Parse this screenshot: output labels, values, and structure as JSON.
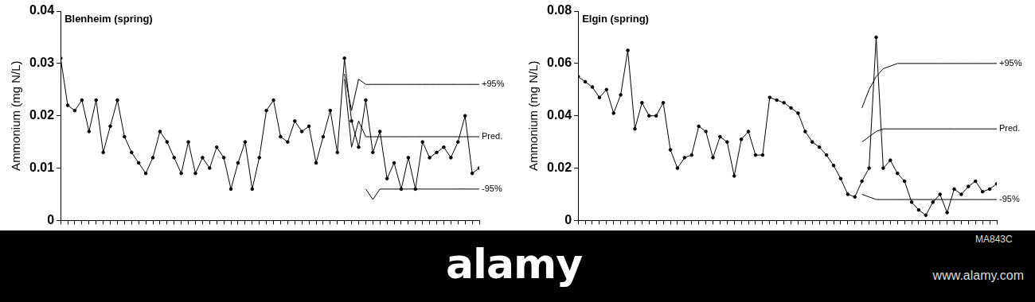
{
  "chart_data": [
    {
      "type": "line",
      "title": "Blenheim (spring)",
      "y_label": "Ammonium (mg N/L)",
      "categories": [
        null,
        null,
        null,
        null,
        null,
        null,
        null,
        null,
        null,
        null,
        null,
        null,
        null,
        null,
        null,
        null,
        null,
        null,
        null,
        null,
        null,
        null,
        null,
        null,
        null,
        null,
        null,
        null,
        null,
        null,
        null,
        null,
        null,
        null,
        null,
        null,
        null,
        null,
        null,
        null,
        null,
        null,
        null,
        null,
        null,
        null,
        null,
        null,
        null,
        null,
        null,
        null,
        null,
        null,
        null,
        null,
        null,
        null,
        null,
        null
      ],
      "series": [
        {
          "color": "#000000",
          "marker": "dot",
          "line_style": "solid",
          "values": [
            0.031,
            0.022,
            0.021,
            0.023,
            0.017,
            0.023,
            0.013,
            0.018,
            0.023,
            0.016,
            0.013,
            0.011,
            0.009,
            0.012,
            0.017,
            0.015,
            0.012,
            0.009,
            0.015,
            0.009,
            0.012,
            0.01,
            0.014,
            0.012,
            0.006,
            0.011,
            0.015,
            0.006,
            0.012,
            0.021,
            0.023,
            0.016,
            0.015,
            0.019,
            0.017,
            0.018,
            0.011,
            0.016,
            0.021,
            0.013,
            0.031,
            0.019,
            0.014,
            0.023,
            0.013,
            0.017,
            0.008,
            0.011,
            0.006,
            0.012,
            0.006,
            0.015,
            0.012,
            0.013,
            0.014,
            0.012,
            0.015,
            0.02,
            0.009,
            0.01
          ]
        },
        {
          "name": "+95%",
          "color": "#000000",
          "marker": "none",
          "line_style": "solid",
          "values": [
            null,
            null,
            null,
            null,
            null,
            null,
            null,
            null,
            null,
            null,
            null,
            null,
            null,
            null,
            null,
            null,
            null,
            null,
            null,
            null,
            null,
            null,
            null,
            null,
            null,
            null,
            null,
            null,
            null,
            null,
            null,
            null,
            null,
            null,
            null,
            null,
            null,
            null,
            null,
            null,
            0.028,
            0.021,
            0.027,
            0.026,
            0.026,
            0.026,
            0.026,
            0.026,
            0.026,
            0.026,
            0.026,
            0.026,
            0.026,
            0.026,
            0.026,
            0.026,
            0.026,
            0.026,
            0.026,
            0.026
          ]
        },
        {
          "name": "Pred.",
          "color": "#000000",
          "marker": "none",
          "line_style": "solid",
          "values": [
            null,
            null,
            null,
            null,
            null,
            null,
            null,
            null,
            null,
            null,
            null,
            null,
            null,
            null,
            null,
            null,
            null,
            null,
            null,
            null,
            null,
            null,
            null,
            null,
            null,
            null,
            null,
            null,
            null,
            null,
            null,
            null,
            null,
            null,
            null,
            null,
            null,
            null,
            null,
            null,
            0.027,
            0.014,
            0.019,
            0.016,
            0.016,
            0.016,
            0.016,
            0.016,
            0.016,
            0.016,
            0.016,
            0.016,
            0.016,
            0.016,
            0.016,
            0.016,
            0.016,
            0.016,
            0.016,
            0.016
          ]
        },
        {
          "name": "-95%",
          "color": "#000000",
          "marker": "none",
          "line_style": "solid",
          "values": [
            null,
            null,
            null,
            null,
            null,
            null,
            null,
            null,
            null,
            null,
            null,
            null,
            null,
            null,
            null,
            null,
            null,
            null,
            null,
            null,
            null,
            null,
            null,
            null,
            null,
            null,
            null,
            null,
            null,
            null,
            null,
            null,
            null,
            null,
            null,
            null,
            null,
            null,
            null,
            null,
            null,
            null,
            null,
            0.006,
            0.004,
            0.006,
            0.006,
            0.006,
            0.006,
            0.006,
            0.006,
            0.006,
            0.006,
            0.006,
            0.006,
            0.006,
            0.006,
            0.006,
            0.006,
            0.006
          ]
        }
      ],
      "ylim": [
        0,
        0.04
      ],
      "yticks": [
        0,
        0.01,
        0.02,
        0.03,
        0.04
      ],
      "grid": false,
      "tick_labels": "y"
    },
    {
      "type": "line",
      "title": "Elgin (spring)",
      "y_label": "Ammonium (mg N/L)",
      "categories": [
        null,
        null,
        null,
        null,
        null,
        null,
        null,
        null,
        null,
        null,
        null,
        null,
        null,
        null,
        null,
        null,
        null,
        null,
        null,
        null,
        null,
        null,
        null,
        null,
        null,
        null,
        null,
        null,
        null,
        null,
        null,
        null,
        null,
        null,
        null,
        null,
        null,
        null,
        null,
        null,
        null,
        null,
        null,
        null,
        null,
        null,
        null,
        null,
        null,
        null,
        null,
        null,
        null,
        null,
        null,
        null,
        null,
        null,
        null,
        null
      ],
      "series": [
        {
          "color": "#000000",
          "marker": "dot",
          "line_style": "solid",
          "values": [
            0.055,
            0.053,
            0.051,
            0.047,
            0.05,
            0.041,
            0.048,
            0.065,
            0.035,
            0.045,
            0.04,
            0.04,
            0.045,
            0.027,
            0.02,
            0.024,
            0.025,
            0.036,
            0.034,
            0.024,
            0.032,
            0.03,
            0.017,
            0.031,
            0.034,
            0.025,
            0.025,
            0.047,
            0.046,
            0.045,
            0.043,
            0.041,
            0.034,
            0.03,
            0.028,
            0.025,
            0.021,
            0.016,
            0.01,
            0.009,
            0.015,
            0.02,
            0.07,
            0.02,
            0.023,
            0.018,
            0.015,
            0.007,
            0.004,
            0.002,
            0.007,
            0.01,
            0.003,
            0.012,
            0.01,
            0.013,
            0.015,
            0.011,
            0.012,
            0.014
          ]
        },
        {
          "name": "+95%",
          "color": "#000000",
          "marker": "none",
          "line_style": "solid",
          "values": [
            null,
            null,
            null,
            null,
            null,
            null,
            null,
            null,
            null,
            null,
            null,
            null,
            null,
            null,
            null,
            null,
            null,
            null,
            null,
            null,
            null,
            null,
            null,
            null,
            null,
            null,
            null,
            null,
            null,
            null,
            null,
            null,
            null,
            null,
            null,
            null,
            null,
            null,
            null,
            null,
            0.043,
            0.05,
            0.055,
            0.058,
            0.059,
            0.06,
            0.06,
            0.06,
            0.06,
            0.06,
            0.06,
            0.06,
            0.06,
            0.06,
            0.06,
            0.06,
            0.06,
            0.06,
            0.06,
            0.06
          ]
        },
        {
          "name": "Pred.",
          "color": "#000000",
          "marker": "none",
          "line_style": "solid",
          "values": [
            null,
            null,
            null,
            null,
            null,
            null,
            null,
            null,
            null,
            null,
            null,
            null,
            null,
            null,
            null,
            null,
            null,
            null,
            null,
            null,
            null,
            null,
            null,
            null,
            null,
            null,
            null,
            null,
            null,
            null,
            null,
            null,
            null,
            null,
            null,
            null,
            null,
            null,
            null,
            null,
            0.03,
            0.032,
            0.034,
            0.035,
            0.035,
            0.035,
            0.035,
            0.035,
            0.035,
            0.035,
            0.035,
            0.035,
            0.035,
            0.035,
            0.035,
            0.035,
            0.035,
            0.035,
            0.035,
            0.035
          ]
        },
        {
          "name": "-95%",
          "color": "#000000",
          "marker": "none",
          "line_style": "solid",
          "values": [
            null,
            null,
            null,
            null,
            null,
            null,
            null,
            null,
            null,
            null,
            null,
            null,
            null,
            null,
            null,
            null,
            null,
            null,
            null,
            null,
            null,
            null,
            null,
            null,
            null,
            null,
            null,
            null,
            null,
            null,
            null,
            null,
            null,
            null,
            null,
            null,
            null,
            null,
            null,
            null,
            0.01,
            0.009,
            0.008,
            0.008,
            0.008,
            0.008,
            0.008,
            0.008,
            0.008,
            0.008,
            0.008,
            0.008,
            0.008,
            0.008,
            0.008,
            0.008,
            0.008,
            0.008,
            0.008,
            0.008
          ]
        }
      ],
      "ylim": [
        0,
        0.08
      ],
      "yticks": [
        0,
        0.02,
        0.04,
        0.06,
        0.08
      ],
      "grid": false,
      "tick_labels": "y"
    }
  ],
  "banner": {
    "brand": "alamy",
    "url": "www.alamy.com",
    "id": "MA843C"
  }
}
